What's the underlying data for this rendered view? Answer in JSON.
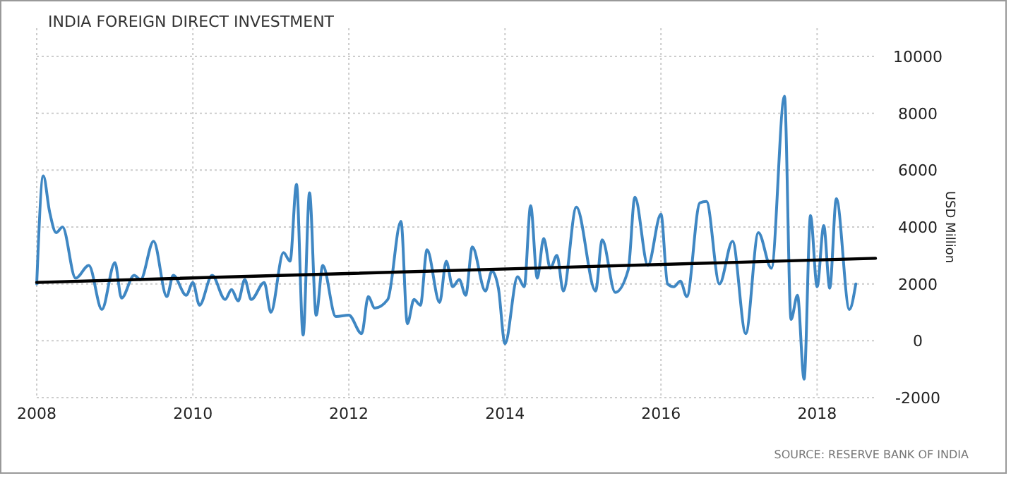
{
  "chart_data": {
    "type": "line",
    "title": "INDIA FOREIGN DIRECT INVESTMENT",
    "ylabel": "USD Million",
    "annotations": [
      "SOURCE: RESERVE BANK OF INDIA"
    ],
    "xlim": [
      "2008-01",
      "2018-10"
    ],
    "xticks": [
      {
        "value": "2008",
        "label": "2008"
      },
      {
        "value": "2010",
        "label": "2010"
      },
      {
        "value": "2012",
        "label": "2012"
      },
      {
        "value": "2014",
        "label": "2014"
      },
      {
        "value": "2016",
        "label": "2016"
      },
      {
        "value": "2018",
        "label": "2018"
      }
    ],
    "ylim": [
      -2000,
      10000
    ],
    "yticks": [
      -2000,
      0,
      2000,
      4000,
      6000,
      8000,
      10000
    ],
    "grid": true,
    "series": [
      {
        "color": "#3f87c3",
        "x": [
          "2008-01",
          "2008-02",
          "2008-03",
          "2008-04",
          "2008-05",
          "2008-07",
          "2008-09",
          "2008-11",
          "2009-01",
          "2009-02",
          "2009-04",
          "2009-05",
          "2009-07",
          "2009-09",
          "2009-10",
          "2009-12",
          "2010-01",
          "2010-02",
          "2010-04",
          "2010-06",
          "2010-07",
          "2010-08",
          "2010-09",
          "2010-10",
          "2010-12",
          "2011-01",
          "2011-03",
          "2011-04",
          "2011-05",
          "2011-06",
          "2011-07",
          "2011-08",
          "2011-09",
          "2011-11",
          "2012-01",
          "2012-03",
          "2012-04",
          "2012-05",
          "2012-07",
          "2012-09",
          "2012-10",
          "2012-11",
          "2012-12",
          "2013-01",
          "2013-03",
          "2013-04",
          "2013-05",
          "2013-06",
          "2013-07",
          "2013-08",
          "2013-10",
          "2013-11",
          "2013-12",
          "2014-01",
          "2014-03",
          "2014-04",
          "2014-05",
          "2014-06",
          "2014-07",
          "2014-08",
          "2014-09",
          "2014-10",
          "2014-12",
          "2015-03",
          "2015-04",
          "2015-06",
          "2015-08",
          "2015-09",
          "2015-11",
          "2016-01",
          "2016-02",
          "2016-03",
          "2016-04",
          "2016-05",
          "2016-07",
          "2016-08",
          "2016-10",
          "2016-12",
          "2017-02",
          "2017-04",
          "2017-06",
          "2017-08",
          "2017-09",
          "2017-10",
          "2017-11",
          "2017-12",
          "2018-01",
          "2018-02",
          "2018-03",
          "2018-04",
          "2018-06",
          "2018-07"
        ],
        "values": [
          2000,
          5800,
          4550,
          3800,
          4000,
          2200,
          2650,
          1100,
          2750,
          1500,
          2300,
          2150,
          3500,
          1550,
          2300,
          1600,
          2050,
          1250,
          2300,
          1450,
          1800,
          1400,
          2150,
          1450,
          2050,
          1000,
          3100,
          2800,
          5500,
          200,
          5200,
          900,
          2650,
          850,
          900,
          250,
          1550,
          1150,
          1450,
          4200,
          600,
          1450,
          1250,
          3200,
          1350,
          2800,
          1900,
          2150,
          1600,
          3300,
          1750,
          2450,
          1850,
          -100,
          2250,
          1900,
          4750,
          2200,
          3600,
          2550,
          3000,
          1750,
          4700,
          1750,
          3550,
          1700,
          2500,
          5050,
          2650,
          4450,
          2000,
          1900,
          2100,
          1550,
          4850,
          4900,
          2000,
          3500,
          250,
          3800,
          2550,
          8600,
          750,
          1600,
          -1350,
          4400,
          1900,
          4050,
          1850,
          5000,
          1100,
          2000
        ]
      },
      {
        "type": "line",
        "color": "#000000",
        "x": [
          "2008-01",
          "2018-10"
        ],
        "values": [
          2050,
          2900
        ]
      }
    ]
  }
}
